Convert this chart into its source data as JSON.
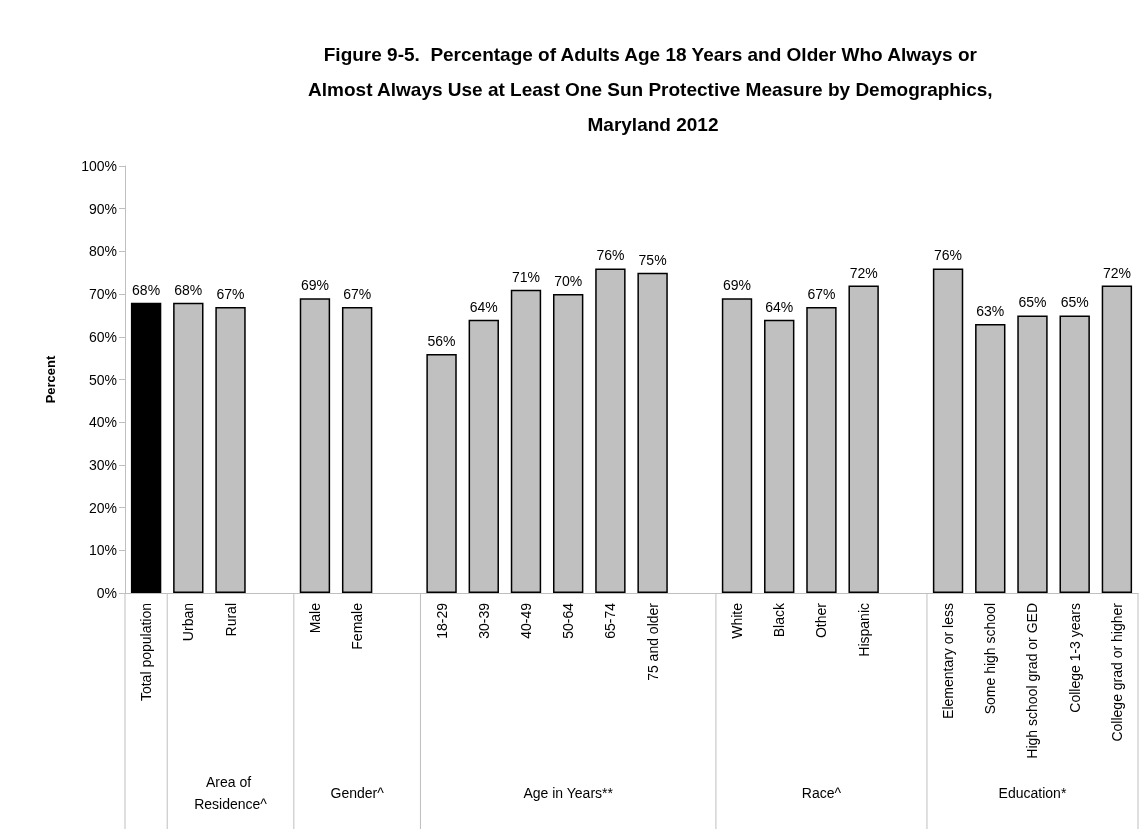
{
  "chart_data": {
    "type": "bar",
    "title": "Figure 9-5.  Percentage of Adults Age 18 Years and Older Who Always or Almost Always Use at Least One Sun Protective Measure by Demographics, Maryland 2012",
    "ylabel": "Percent",
    "categories": [
      "Total population",
      "Urban",
      "Rural",
      null,
      "Male",
      "Female",
      null,
      "18-29",
      "30-39",
      "40-49",
      "50-64",
      "65-74",
      "75 and older",
      null,
      "White",
      "Black",
      "Other",
      "Hispanic",
      null,
      "Elementary or less",
      "Some high school",
      "High school grad or GED",
      "College 1-3 years",
      "College grad or higher"
    ],
    "values": [
      68,
      68,
      67,
      null,
      69,
      67,
      null,
      56,
      64,
      71,
      70,
      76,
      75,
      null,
      69,
      64,
      67,
      72,
      null,
      76,
      63,
      65,
      65,
      72
    ],
    "value_labels": [
      "68%",
      "68%",
      "67%",
      null,
      "69%",
      "67%",
      null,
      "56%",
      "64%",
      "71%",
      "70%",
      "76%",
      "75%",
      null,
      "69%",
      "64%",
      "67%",
      "72%",
      null,
      "76%",
      "63%",
      "65%",
      "65%",
      "72%"
    ],
    "colors": [
      "#000000",
      "#c0c0c0",
      "#c0c0c0",
      null,
      "#c0c0c0",
      "#c0c0c0",
      null,
      "#c0c0c0",
      "#c0c0c0",
      "#c0c0c0",
      "#c0c0c0",
      "#c0c0c0",
      "#c0c0c0",
      null,
      "#c0c0c0",
      "#c0c0c0",
      "#c0c0c0",
      "#c0c0c0",
      null,
      "#c0c0c0",
      "#c0c0c0",
      "#c0c0c0",
      "#c0c0c0",
      "#c0c0c0"
    ],
    "annotations": [
      "Area of Residence^",
      "Gender^",
      "Age in Years**",
      "Race^",
      "Education*"
    ],
    "ylim": [
      0,
      100
    ],
    "yticks": [
      {
        "value": 0,
        "label": "0%"
      },
      {
        "value": 10,
        "label": "10%"
      },
      {
        "value": 20,
        "label": "20%"
      },
      {
        "value": 30,
        "label": "30%"
      },
      {
        "value": 40,
        "label": "40%"
      },
      {
        "value": 50,
        "label": "50%"
      },
      {
        "value": 60,
        "label": "60%"
      },
      {
        "value": 70,
        "label": "70%"
      },
      {
        "value": 80,
        "label": "80%"
      },
      {
        "value": 90,
        "label": "90%"
      },
      {
        "value": 100,
        "label": "100%"
      }
    ],
    "grid": false
  }
}
